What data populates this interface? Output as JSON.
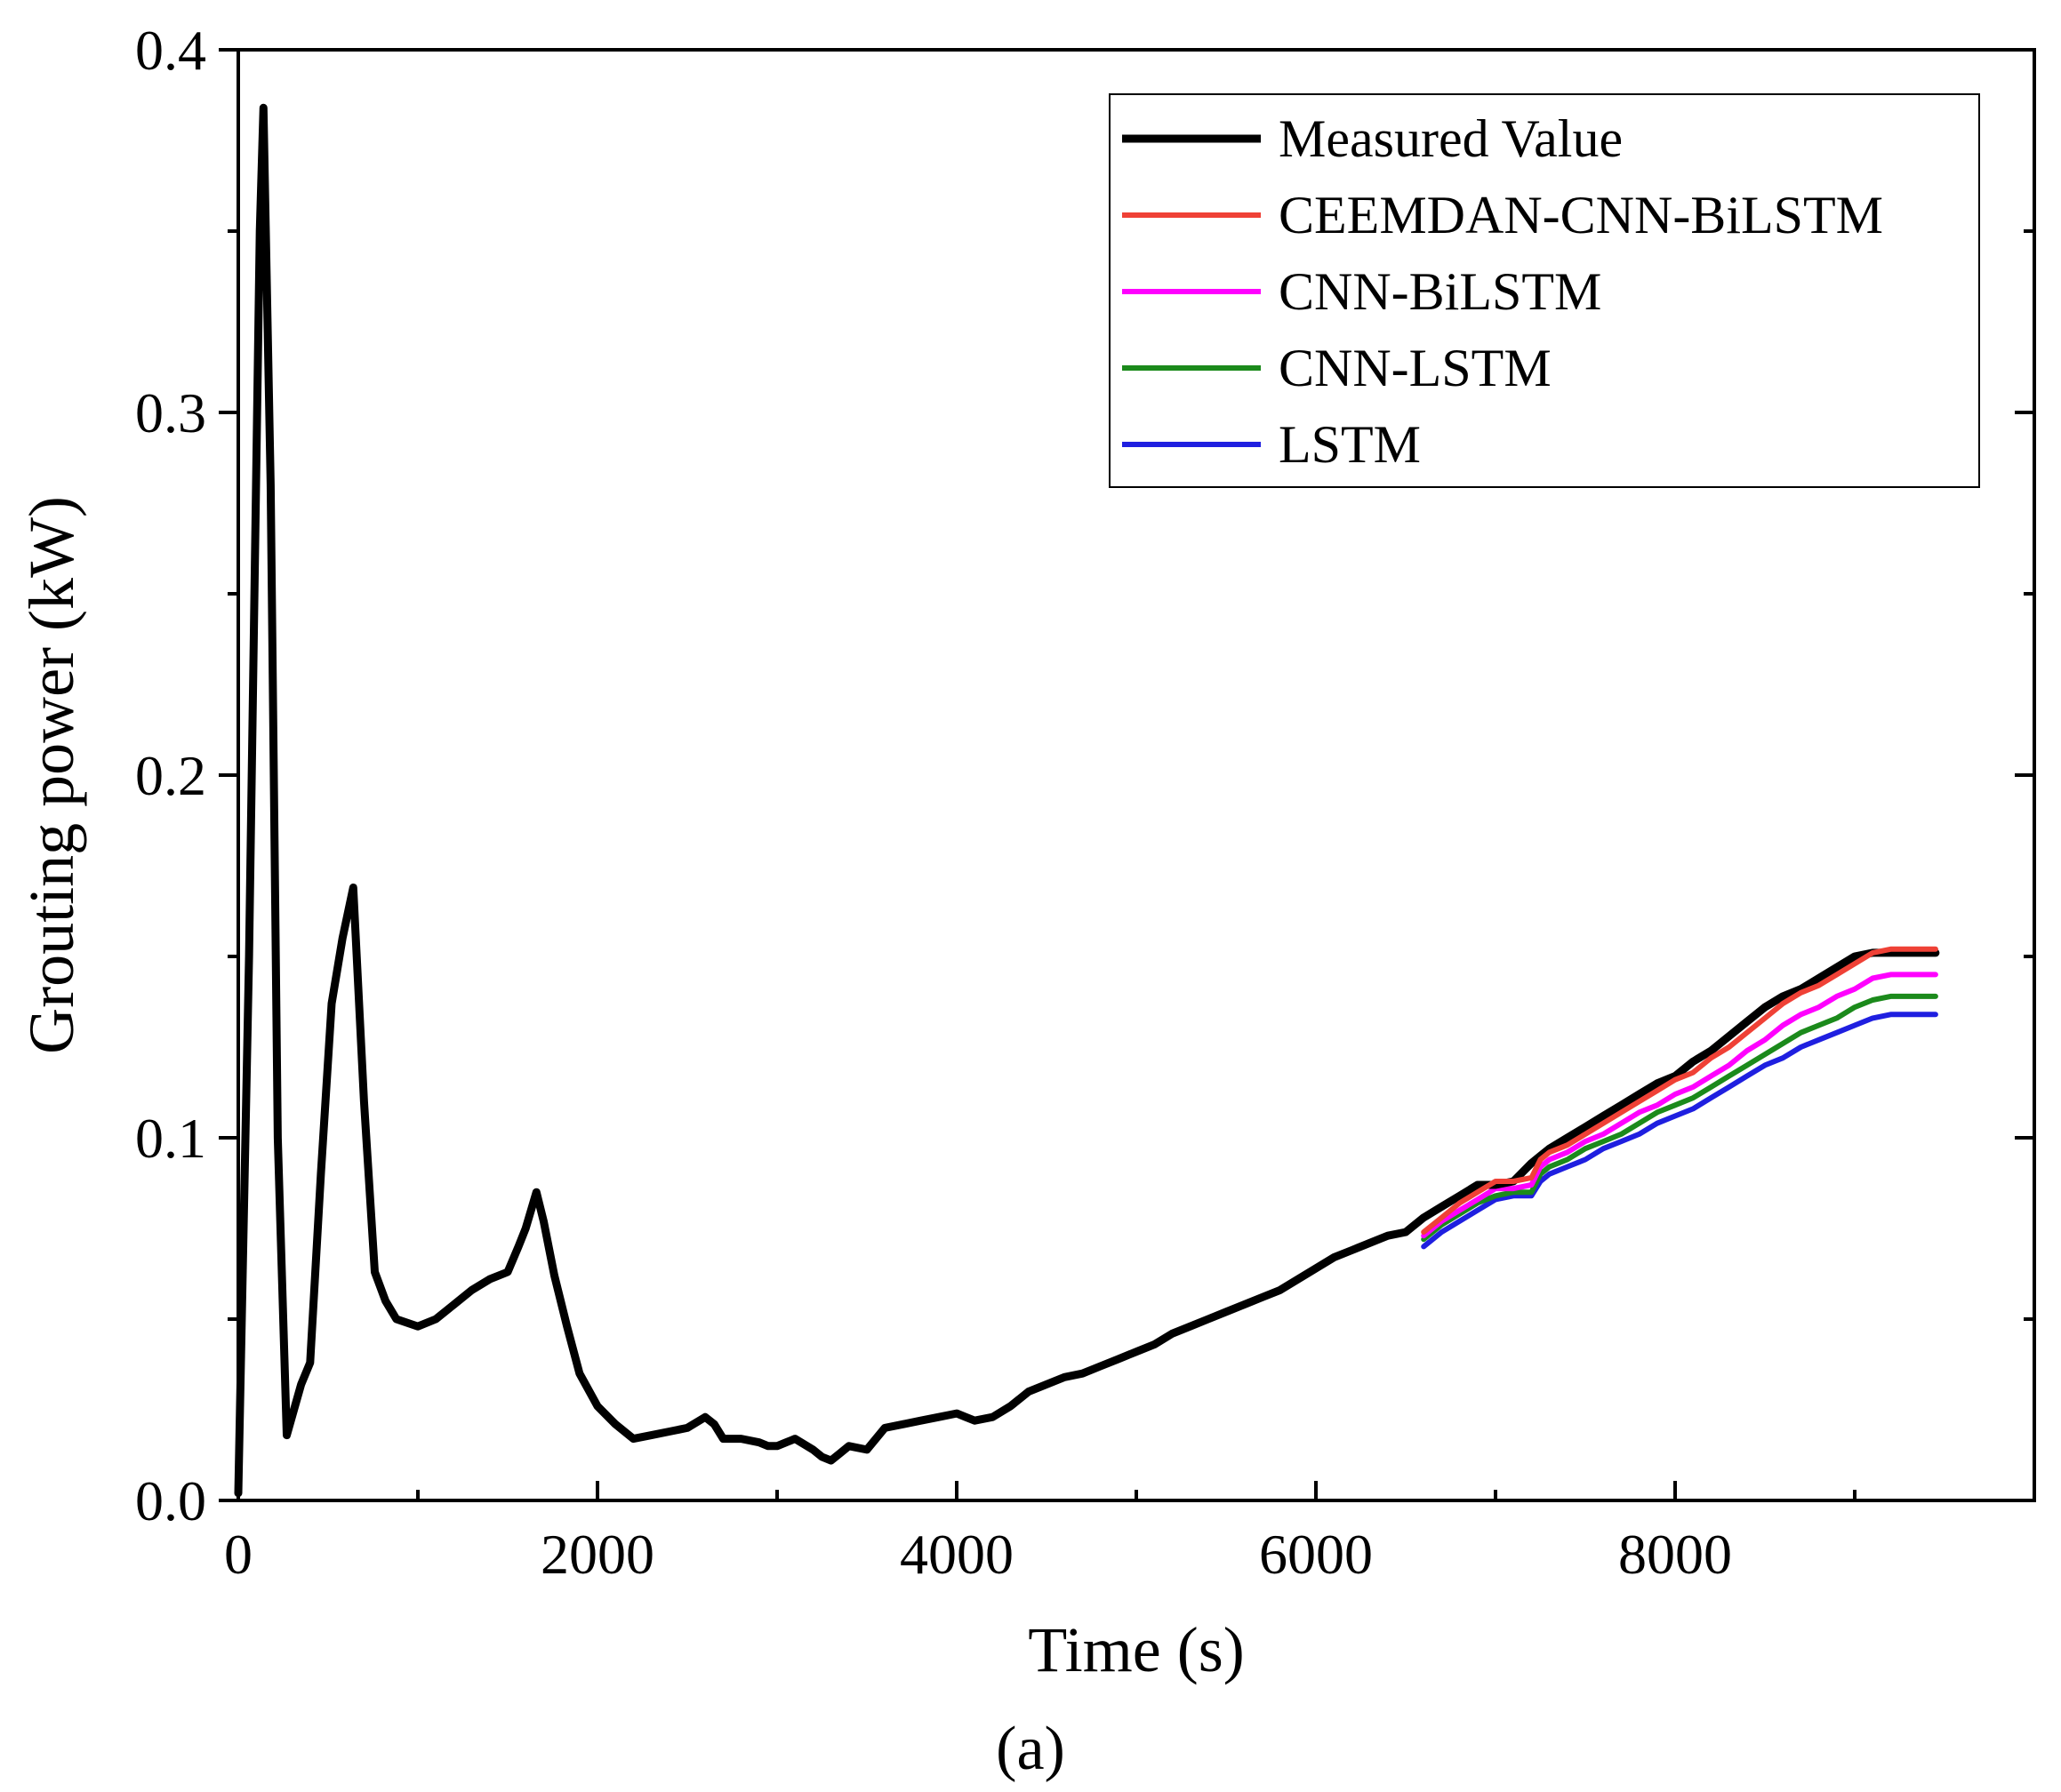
{
  "chart_data": {
    "type": "line",
    "title": "",
    "caption": "(a)",
    "xlabel": "Time (s)",
    "ylabel": "Grouting power (kW)",
    "xlim": [
      0,
      10000
    ],
    "ylim": [
      0,
      0.4
    ],
    "xticks": [
      0,
      2000,
      4000,
      6000,
      8000
    ],
    "xtick_labels": [
      "0",
      "2000",
      "4000",
      "6000",
      "8000"
    ],
    "yticks": [
      0.0,
      0.1,
      0.2,
      0.3,
      0.4
    ],
    "ytick_labels": [
      "0.0",
      "0.1",
      "0.2",
      "0.3",
      "0.4"
    ],
    "grid": false,
    "legend_position": "top-right",
    "series": [
      {
        "name": "Measured Value",
        "color": "#000000",
        "x": [
          0,
          60,
          120,
          140,
          180,
          220,
          270,
          310,
          350,
          400,
          460,
          520,
          580,
          640,
          700,
          760,
          820,
          880,
          1000,
          1100,
          1200,
          1300,
          1400,
          1500,
          1560,
          1600,
          1660,
          1700,
          1760,
          1830,
          1900,
          2000,
          2100,
          2200,
          2300,
          2400,
          2500,
          2600,
          2650,
          2700,
          2800,
          2900,
          2950,
          3000,
          3050,
          3100,
          3200,
          3250,
          3300,
          3350,
          3400,
          3500,
          3600,
          3700,
          3800,
          3900,
          4000,
          4050,
          4100,
          4200,
          4300,
          4400,
          4500,
          4600,
          4700,
          4800,
          4900,
          5000,
          5100,
          5200,
          5300,
          5400,
          5500,
          5600,
          5700,
          5800,
          5900,
          6000,
          6100,
          6200,
          6300,
          6400,
          6500,
          6600,
          6700,
          6800,
          6900,
          7000,
          7100,
          7200,
          7250,
          7300,
          7400,
          7500,
          7600,
          7700,
          7800,
          7900,
          8000,
          8100,
          8200,
          8300,
          8400,
          8500,
          8600,
          8700,
          8800,
          8900,
          9000,
          9100,
          9200,
          9300,
          9400,
          9450
        ],
        "values": [
          0.002,
          0.15,
          0.35,
          0.384,
          0.28,
          0.1,
          0.018,
          0.025,
          0.032,
          0.038,
          0.09,
          0.137,
          0.155,
          0.169,
          0.11,
          0.063,
          0.055,
          0.05,
          0.048,
          0.05,
          0.054,
          0.058,
          0.061,
          0.063,
          0.07,
          0.075,
          0.085,
          0.077,
          0.062,
          0.048,
          0.035,
          0.026,
          0.021,
          0.017,
          0.018,
          0.019,
          0.02,
          0.023,
          0.021,
          0.017,
          0.017,
          0.016,
          0.015,
          0.015,
          0.016,
          0.017,
          0.014,
          0.012,
          0.011,
          0.013,
          0.015,
          0.014,
          0.02,
          0.021,
          0.022,
          0.023,
          0.024,
          0.023,
          0.022,
          0.023,
          0.026,
          0.03,
          0.032,
          0.034,
          0.035,
          0.037,
          0.039,
          0.041,
          0.043,
          0.046,
          0.048,
          0.05,
          0.052,
          0.054,
          0.056,
          0.058,
          0.061,
          0.064,
          0.067,
          0.069,
          0.071,
          0.073,
          0.074,
          0.078,
          0.081,
          0.084,
          0.087,
          0.087,
          0.088,
          0.093,
          0.095,
          0.097,
          0.1,
          0.103,
          0.106,
          0.109,
          0.112,
          0.115,
          0.117,
          0.121,
          0.124,
          0.128,
          0.132,
          0.136,
          0.139,
          0.141,
          0.144,
          0.147,
          0.15,
          0.151,
          0.151,
          0.151,
          0.151,
          0.151
        ]
      },
      {
        "name": "CEEMDAN-CNN-BiLSTM",
        "color": "#ef4136",
        "x": [
          6600,
          6700,
          6800,
          6900,
          7000,
          7100,
          7200,
          7250,
          7300,
          7400,
          7500,
          7600,
          7700,
          7800,
          7900,
          8000,
          8100,
          8200,
          8300,
          8400,
          8500,
          8600,
          8700,
          8800,
          8900,
          9000,
          9100,
          9200,
          9300,
          9400,
          9450
        ],
        "values": [
          0.074,
          0.078,
          0.082,
          0.085,
          0.088,
          0.088,
          0.089,
          0.094,
          0.096,
          0.098,
          0.101,
          0.104,
          0.107,
          0.11,
          0.113,
          0.116,
          0.118,
          0.122,
          0.125,
          0.129,
          0.133,
          0.137,
          0.14,
          0.142,
          0.145,
          0.148,
          0.151,
          0.152,
          0.152,
          0.152,
          0.152
        ]
      },
      {
        "name": "CNN-BiLSTM",
        "color": "#ff00ff",
        "x": [
          6600,
          6700,
          6800,
          6900,
          7000,
          7100,
          7200,
          7250,
          7300,
          7400,
          7500,
          7600,
          7700,
          7800,
          7900,
          8000,
          8100,
          8200,
          8300,
          8400,
          8500,
          8600,
          8700,
          8800,
          8900,
          9000,
          9100,
          9200,
          9300,
          9400,
          9450
        ],
        "values": [
          0.073,
          0.077,
          0.08,
          0.083,
          0.086,
          0.086,
          0.087,
          0.092,
          0.094,
          0.096,
          0.099,
          0.101,
          0.104,
          0.107,
          0.109,
          0.112,
          0.114,
          0.117,
          0.12,
          0.124,
          0.127,
          0.131,
          0.134,
          0.136,
          0.139,
          0.141,
          0.144,
          0.145,
          0.145,
          0.145,
          0.145
        ]
      },
      {
        "name": "CNN-LSTM",
        "color": "#1b8a1b",
        "x": [
          6600,
          6700,
          6800,
          6900,
          7000,
          7100,
          7200,
          7250,
          7300,
          7400,
          7500,
          7600,
          7700,
          7800,
          7900,
          8000,
          8100,
          8200,
          8300,
          8400,
          8500,
          8600,
          8700,
          8800,
          8900,
          9000,
          9100,
          9200,
          9300,
          9400,
          9450
        ],
        "values": [
          0.072,
          0.076,
          0.079,
          0.082,
          0.084,
          0.085,
          0.085,
          0.09,
          0.092,
          0.094,
          0.097,
          0.099,
          0.101,
          0.104,
          0.107,
          0.109,
          0.111,
          0.114,
          0.117,
          0.12,
          0.123,
          0.126,
          0.129,
          0.131,
          0.133,
          0.136,
          0.138,
          0.139,
          0.139,
          0.139,
          0.139
        ]
      },
      {
        "name": "LSTM",
        "color": "#1f1fe0",
        "x": [
          6600,
          6700,
          6800,
          6900,
          7000,
          7100,
          7200,
          7250,
          7300,
          7400,
          7500,
          7600,
          7700,
          7800,
          7900,
          8000,
          8100,
          8200,
          8300,
          8400,
          8500,
          8600,
          8700,
          8800,
          8900,
          9000,
          9100,
          9200,
          9300,
          9400,
          9450
        ],
        "values": [
          0.07,
          0.074,
          0.077,
          0.08,
          0.083,
          0.084,
          0.084,
          0.088,
          0.09,
          0.092,
          0.094,
          0.097,
          0.099,
          0.101,
          0.104,
          0.106,
          0.108,
          0.111,
          0.114,
          0.117,
          0.12,
          0.122,
          0.125,
          0.127,
          0.129,
          0.131,
          0.133,
          0.134,
          0.134,
          0.134,
          0.134
        ]
      }
    ]
  }
}
